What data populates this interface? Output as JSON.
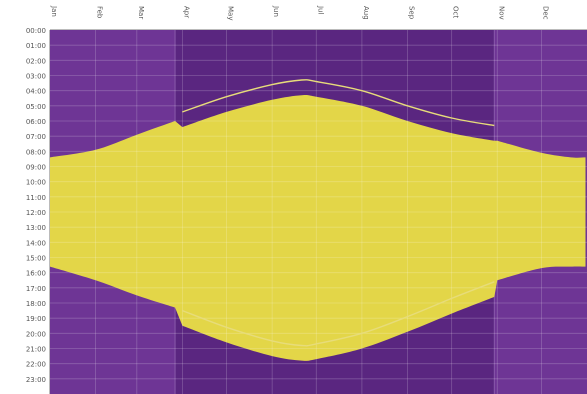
{
  "chart_data": {
    "type": "area",
    "title": "",
    "xlabel": "",
    "ylabel": "",
    "x_ticks": [
      "Jan",
      "Feb",
      "Mar",
      "Apr",
      "May",
      "Jun",
      "Jul",
      "Aug",
      "Sep",
      "Oct",
      "Nov",
      "Dec"
    ],
    "y_ticks": [
      "00:00",
      "01:00",
      "02:00",
      "03:00",
      "04:00",
      "05:00",
      "06:00",
      "07:00",
      "08:00",
      "09:00",
      "10:00",
      "11:00",
      "12:00",
      "13:00",
      "14:00",
      "15:00",
      "16:00",
      "17:00",
      "18:00",
      "19:00",
      "20:00",
      "21:00",
      "22:00",
      "23:00"
    ],
    "ylim": [
      0,
      24
    ],
    "y_direction": "downward",
    "grid": true,
    "legend": "none",
    "dst_period": {
      "start": "Mar 27",
      "end": "Oct 30"
    },
    "series": [
      {
        "role": "daylight",
        "x": [
          "Jan 1",
          "Feb 1",
          "Mar 1",
          "Mar 27",
          "Apr 1",
          "May 1",
          "Jun 1",
          "Jun 21",
          "Jul 1",
          "Aug 1",
          "Sep 1",
          "Oct 1",
          "Oct 30",
          "Nov 1",
          "Dec 1",
          "Dec 21",
          "Dec 31"
        ],
        "sunrise": [
          8.4,
          7.9,
          6.9,
          6.0,
          6.4,
          5.4,
          4.6,
          4.3,
          4.4,
          5.0,
          6.0,
          6.8,
          7.3,
          7.3,
          8.1,
          8.4,
          8.4
        ],
        "sunset": [
          15.6,
          16.5,
          17.5,
          18.3,
          19.5,
          20.6,
          21.5,
          21.8,
          21.7,
          21.0,
          19.9,
          18.7,
          17.6,
          16.5,
          15.7,
          15.6,
          15.6
        ]
      },
      {
        "role": "civil-time-reference",
        "x": [
          "Apr 1",
          "May 1",
          "Jun 1",
          "Jun 21",
          "Jul 1",
          "Aug 1",
          "Sep 1",
          "Oct 1",
          "Oct 30"
        ],
        "early": [
          5.4,
          4.4,
          3.6,
          3.3,
          3.4,
          4.0,
          5.0,
          5.8,
          6.3
        ],
        "late": [
          18.5,
          19.6,
          20.5,
          20.8,
          20.7,
          20.0,
          18.9,
          17.7,
          16.6
        ]
      }
    ]
  },
  "colors": {
    "night": "#6e3595",
    "night_dst": "#5a2680",
    "night_edge": "#8a5aab",
    "daylight": "#e3d648",
    "grid": "#ffffff",
    "reference_line": "#e7dc7a",
    "axis_text": "#555555",
    "axis_line": "#bbbbbb"
  }
}
